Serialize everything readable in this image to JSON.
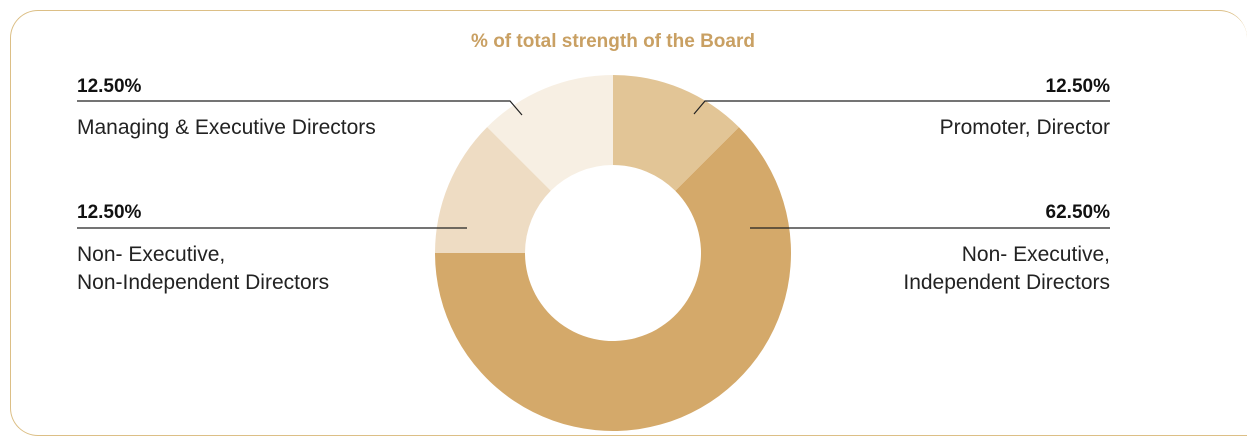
{
  "chart_data": {
    "type": "pie",
    "donut": true,
    "title": "% of total strength of the Board",
    "categories": [
      "Promoter, Director",
      "Non- Executive,\nIndependent Directors",
      "Non- Executive,\nNon-Independent Directors",
      "Managing & Executive Directors"
    ],
    "values": [
      12.5,
      62.5,
      12.5,
      12.5
    ],
    "value_labels": [
      "12.50%",
      "62.50%",
      "12.50%",
      "12.50%"
    ],
    "colors": [
      "#e2c596",
      "#d4a96a",
      "#eedcc3",
      "#f7efe3"
    ]
  }
}
